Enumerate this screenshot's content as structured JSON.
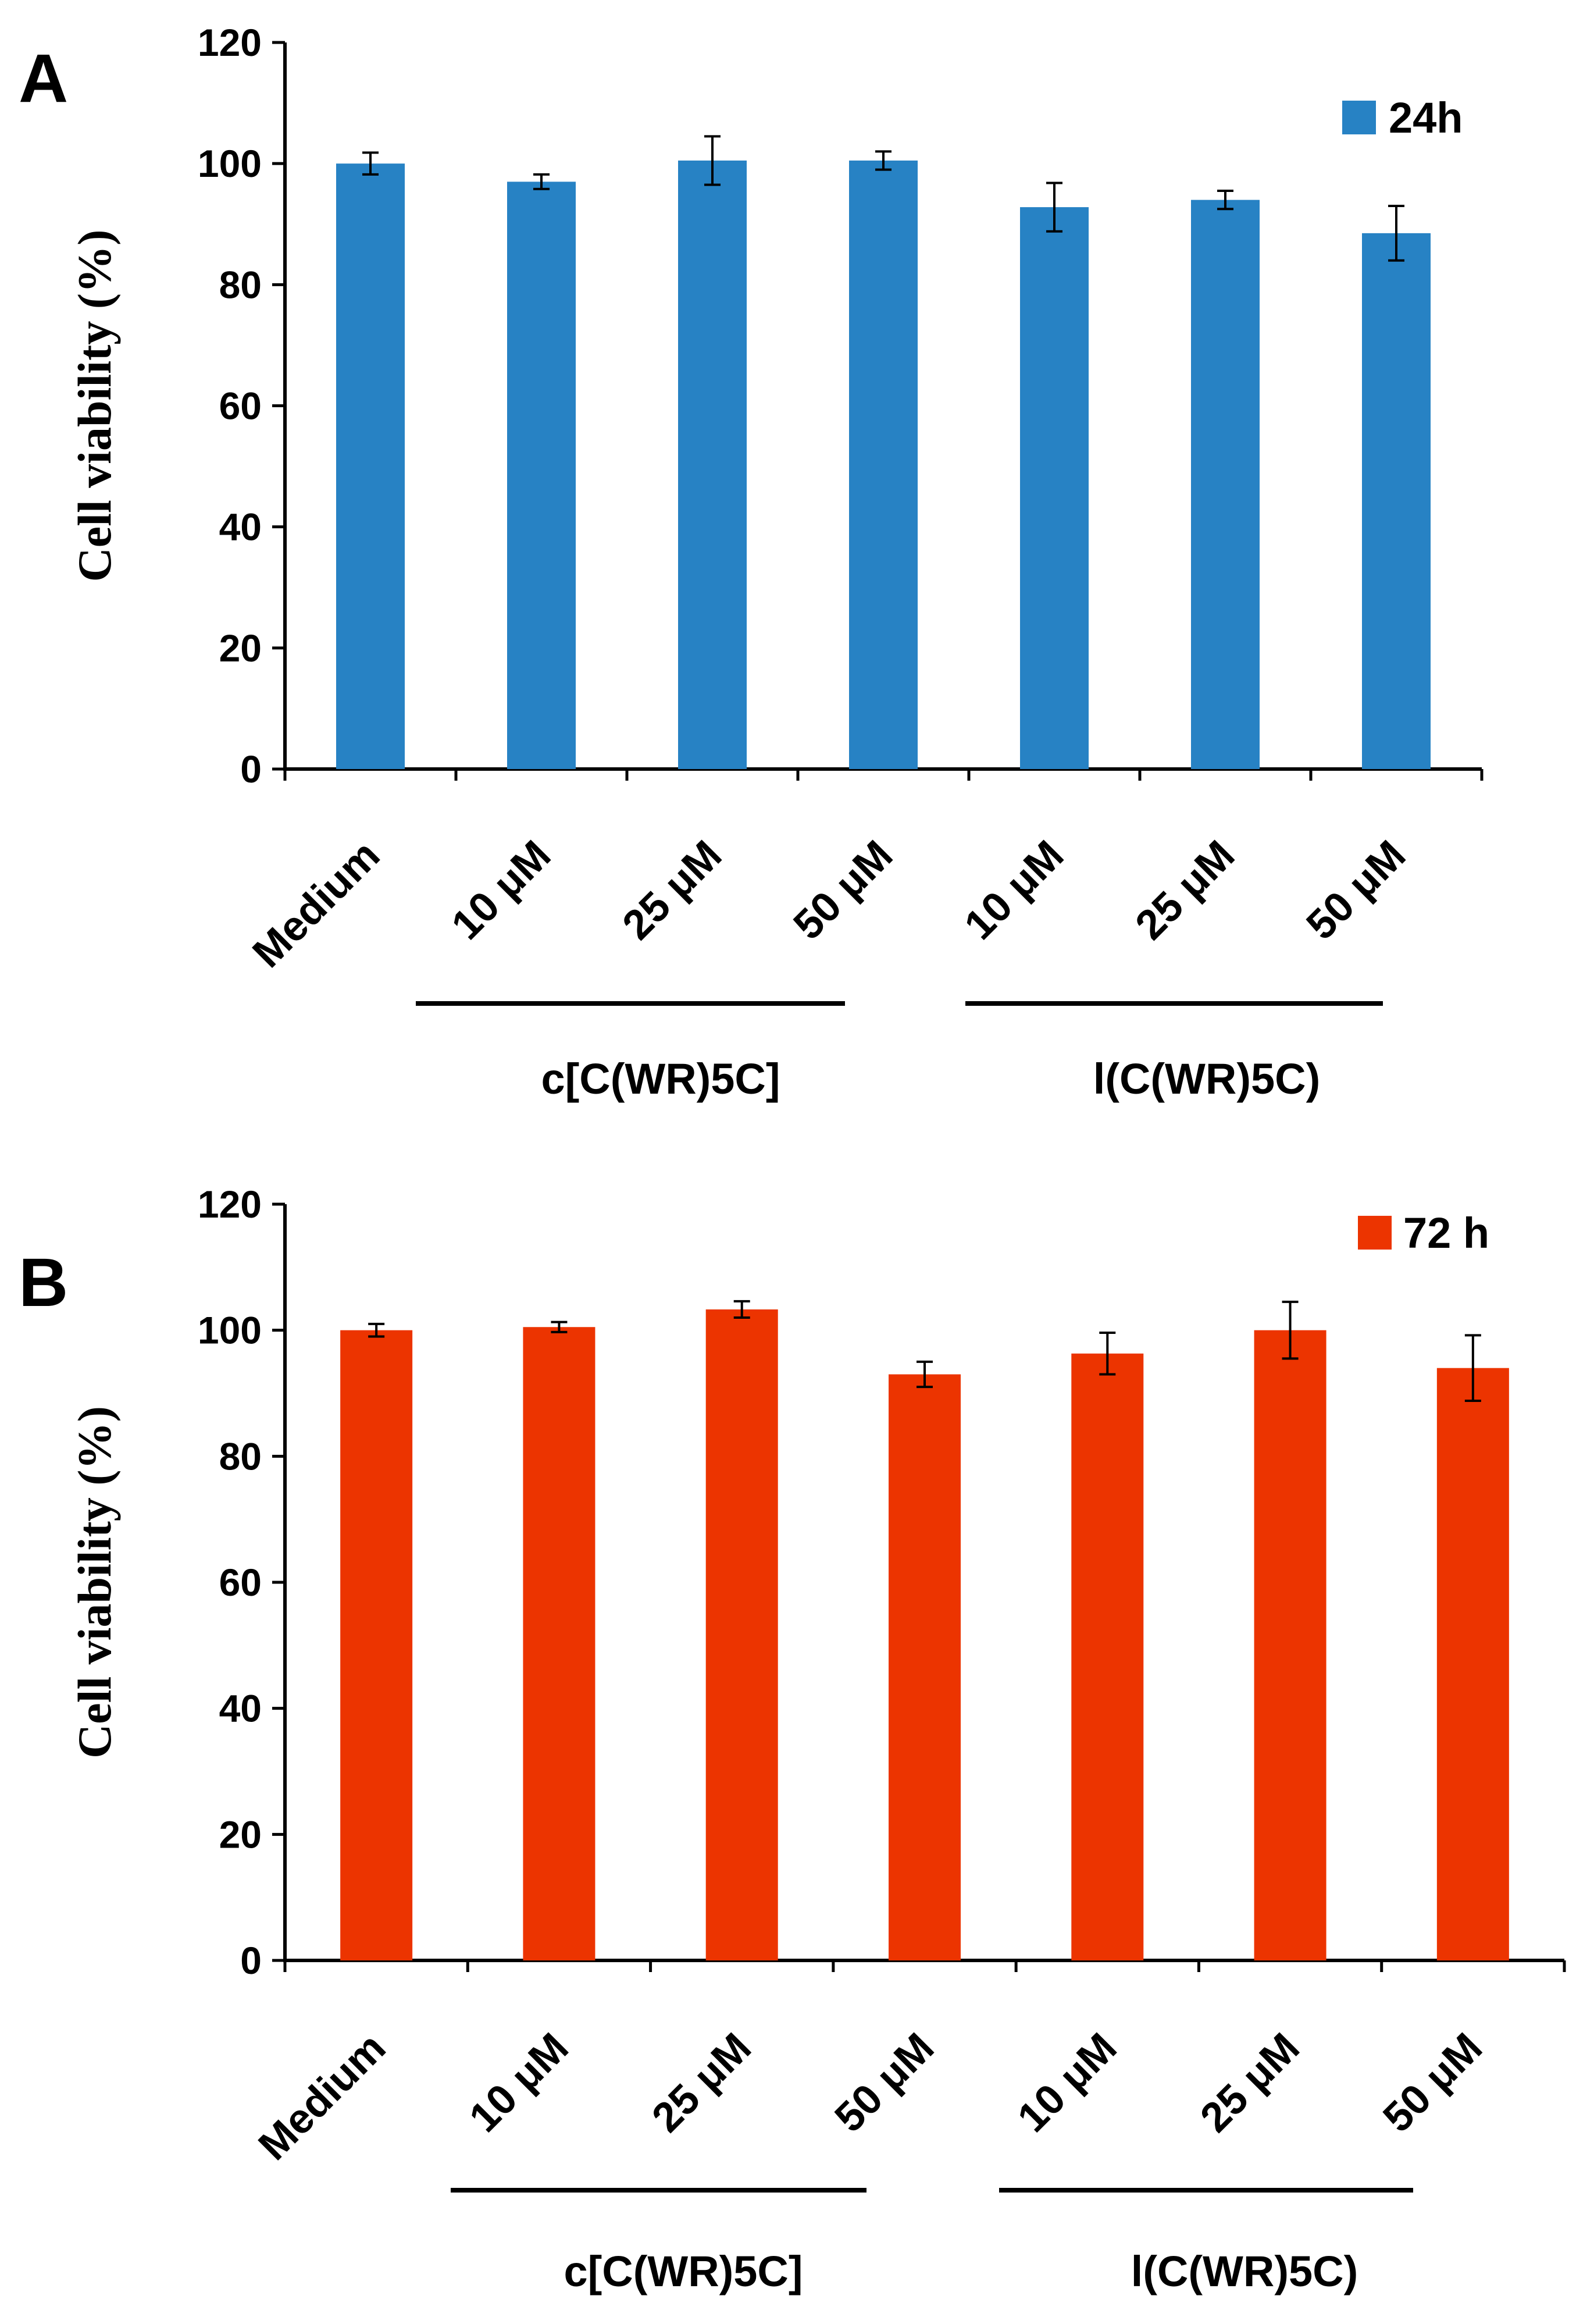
{
  "chart_data": [
    {
      "type": "bar",
      "panel_label": "A",
      "title": "",
      "xlabel": "",
      "ylabel": "Cell viability  (%)",
      "ylim": [
        0,
        120
      ],
      "yticks": [
        "0",
        "20",
        "40",
        "60",
        "80",
        "100",
        "120"
      ],
      "categories": [
        "Medium",
        "10 μM",
        "25 μM",
        "50 μM",
        "10 μM",
        "25 μM",
        "50 μM"
      ],
      "groups": [
        {
          "label": "c[C(WR)5C]",
          "from": 1,
          "to": 3
        },
        {
          "label": "l(C(WR)5C)",
          "from": 4,
          "to": 6
        }
      ],
      "series": [
        {
          "name": "24h",
          "color": "#2782c4",
          "values": [
            100,
            97,
            100.5,
            100.5,
            92.8,
            94,
            88.5
          ],
          "errors": [
            1.8,
            1.2,
            4.0,
            1.5,
            4.0,
            1.5,
            4.5
          ]
        }
      ],
      "legend": "top-right"
    },
    {
      "type": "bar",
      "panel_label": "B",
      "title": "",
      "xlabel": "",
      "ylabel": "Cell viability  (%)",
      "ylim": [
        0,
        120
      ],
      "yticks": [
        "0",
        "20",
        "40",
        "60",
        "80",
        "100",
        "120"
      ],
      "categories": [
        "Medium",
        "10 μM",
        "25 μM",
        "50 μM",
        "10 μM",
        "25 μM",
        "50 μM"
      ],
      "groups": [
        {
          "label": "c[C(WR)5C]",
          "from": 1,
          "to": 3
        },
        {
          "label": "l(C(WR)5C)",
          "from": 4,
          "to": 6
        }
      ],
      "series": [
        {
          "name": "72 h",
          "color": "#ec3400",
          "values": [
            100,
            100.5,
            103.3,
            93,
            96.3,
            100,
            94
          ],
          "errors": [
            1.0,
            0.8,
            1.3,
            2.0,
            3.3,
            4.5,
            5.2
          ]
        }
      ],
      "legend": "top-right"
    }
  ]
}
